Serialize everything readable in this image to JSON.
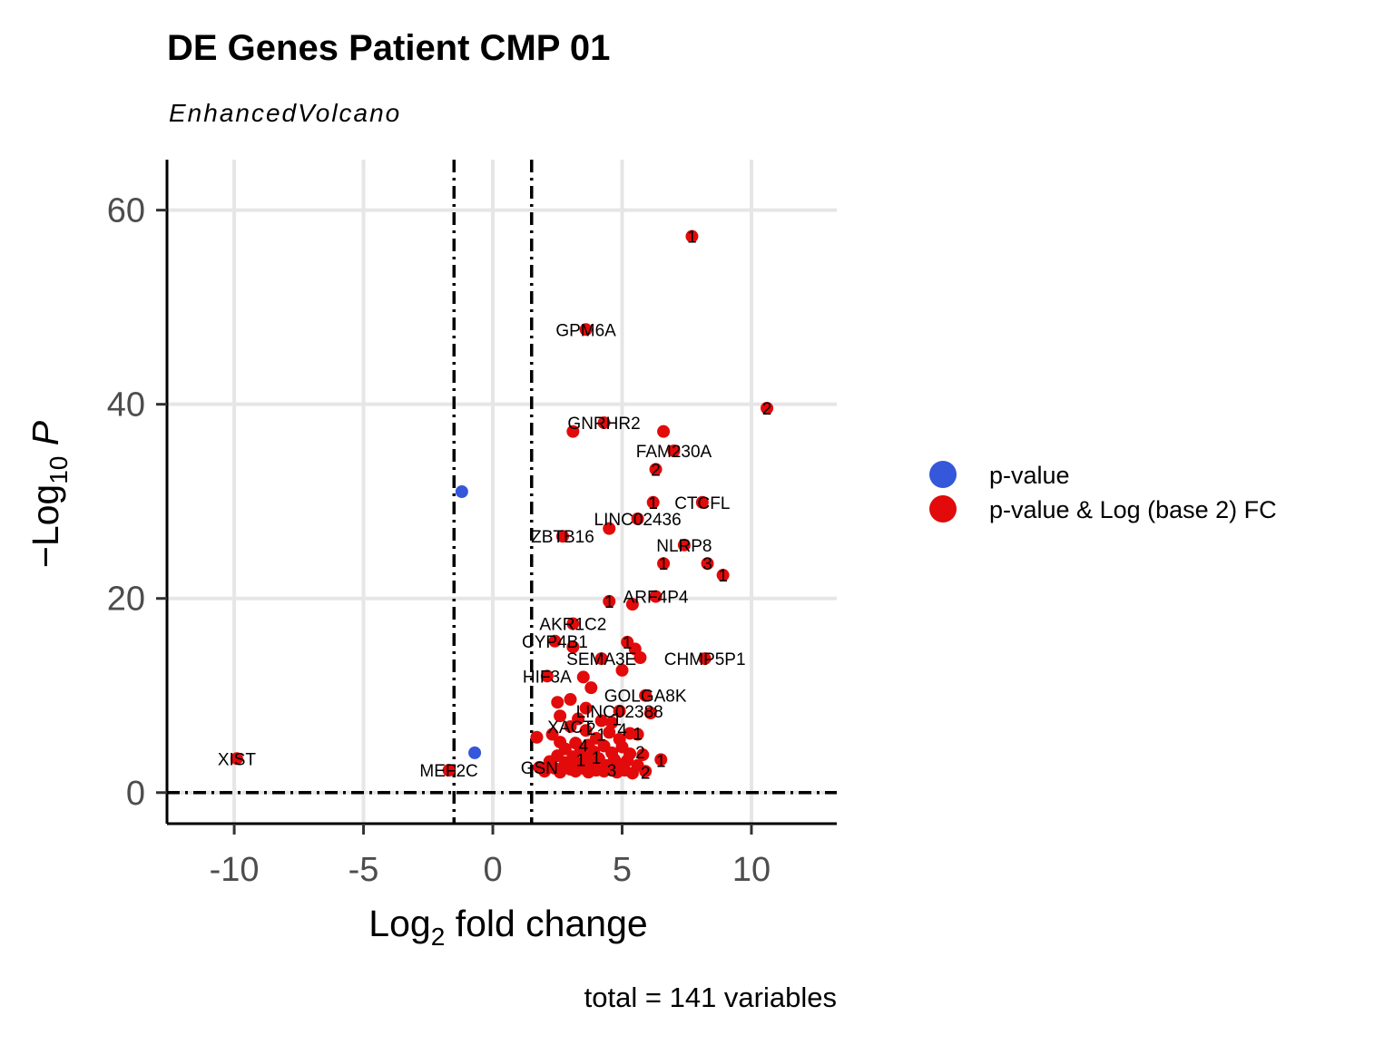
{
  "chart_data": {
    "type": "scatter",
    "title": "DE Genes Patient CMP 01",
    "subtitle": "EnhancedVolcano",
    "xlabel": "Log2 fold change",
    "ylabel": "-Log10 P",
    "caption": "total = 141 variables",
    "xlim": [
      -12.6,
      13.3
    ],
    "ylim": [
      -3.2,
      65.2
    ],
    "xticks": [
      -10,
      -5,
      0,
      5,
      10
    ],
    "xtick_labels": [
      "-10",
      "-5",
      "0",
      "5",
      "10"
    ],
    "yticks": [
      0,
      20,
      40,
      60
    ],
    "ytick_labels": [
      "0",
      "20",
      "40",
      "60"
    ],
    "grid": true,
    "legend_position": "right",
    "thresholds": {
      "log2fc": [
        -1.5,
        1.5
      ],
      "neg_log10_p": 0
    },
    "colors": {
      "pvalue": "#3557d9",
      "both": "#e20a0a",
      "grid": "#e6e6e6"
    },
    "series": [
      {
        "name": "p-value",
        "color": "#3557d9",
        "points": [
          {
            "x": -1.2,
            "y": 31.0
          },
          {
            "x": -0.7,
            "y": 4.1
          }
        ]
      },
      {
        "name": "p-value & Log (base 2) FC",
        "color": "#e20a0a",
        "points": [
          {
            "x": 7.7,
            "y": 57.3
          },
          {
            "x": 3.6,
            "y": 47.7,
            "label": "GPM6A"
          },
          {
            "x": 10.6,
            "y": 39.6
          },
          {
            "x": 4.3,
            "y": 38.1,
            "label": "GNRHR2"
          },
          {
            "x": 3.1,
            "y": 37.2
          },
          {
            "x": 6.6,
            "y": 37.2
          },
          {
            "x": 7.0,
            "y": 35.2,
            "label": "FAM230A"
          },
          {
            "x": 6.3,
            "y": 33.3
          },
          {
            "x": 6.2,
            "y": 29.9
          },
          {
            "x": 8.1,
            "y": 29.9,
            "label": "CTCFL"
          },
          {
            "x": 5.6,
            "y": 28.2,
            "label": "LINC02436"
          },
          {
            "x": 4.5,
            "y": 27.2
          },
          {
            "x": 2.7,
            "y": 26.4,
            "label": "ZBTB16"
          },
          {
            "x": 7.4,
            "y": 25.5,
            "label": "NLRP8"
          },
          {
            "x": 6.6,
            "y": 23.6
          },
          {
            "x": 8.3,
            "y": 23.6
          },
          {
            "x": 8.9,
            "y": 22.4
          },
          {
            "x": 4.5,
            "y": 19.7
          },
          {
            "x": 5.4,
            "y": 19.4
          },
          {
            "x": 6.3,
            "y": 20.2,
            "label": "ARF4P4"
          },
          {
            "x": 3.1,
            "y": 17.4,
            "label": "AKR1C2"
          },
          {
            "x": 2.4,
            "y": 15.6,
            "label": "CYP4B1"
          },
          {
            "x": 3.1,
            "y": 15.0
          },
          {
            "x": 5.2,
            "y": 15.5
          },
          {
            "x": 5.5,
            "y": 14.8
          },
          {
            "x": 4.2,
            "y": 13.8,
            "label": "SEMA3E"
          },
          {
            "x": 5.7,
            "y": 13.9
          },
          {
            "x": 8.2,
            "y": 13.8,
            "label": "CHMP5P1"
          },
          {
            "x": 5.0,
            "y": 12.6
          },
          {
            "x": 2.1,
            "y": 12.0,
            "label": "HIF3A"
          },
          {
            "x": 3.5,
            "y": 11.9
          },
          {
            "x": 3.8,
            "y": 10.8
          },
          {
            "x": 5.9,
            "y": 10.0,
            "label": "GOLGA8K"
          },
          {
            "x": 3.0,
            "y": 9.6
          },
          {
            "x": 2.5,
            "y": 9.3
          },
          {
            "x": 3.6,
            "y": 8.7
          },
          {
            "x": 4.9,
            "y": 8.4,
            "label": "LINC02388"
          },
          {
            "x": 6.1,
            "y": 8.2
          },
          {
            "x": 2.6,
            "y": 7.9
          },
          {
            "x": 3.3,
            "y": 7.6
          },
          {
            "x": 4.2,
            "y": 7.4
          },
          {
            "x": 4.6,
            "y": 7.2
          },
          {
            "x": 3.0,
            "y": 6.8,
            "label": "XACT"
          },
          {
            "x": 3.6,
            "y": 6.4
          },
          {
            "x": 4.5,
            "y": 6.2
          },
          {
            "x": 2.3,
            "y": 6.0
          },
          {
            "x": 5.3,
            "y": 6.1
          },
          {
            "x": 5.6,
            "y": 6.0
          },
          {
            "x": 1.7,
            "y": 5.7
          },
          {
            "x": 4.0,
            "y": 5.6
          },
          {
            "x": 4.9,
            "y": 5.5
          },
          {
            "x": 2.6,
            "y": 5.2
          },
          {
            "x": 3.2,
            "y": 5.1
          },
          {
            "x": 3.7,
            "y": 4.9
          },
          {
            "x": 4.3,
            "y": 4.8
          },
          {
            "x": 5.0,
            "y": 4.7
          },
          {
            "x": 2.8,
            "y": 4.5
          },
          {
            "x": 3.4,
            "y": 4.4
          },
          {
            "x": 3.9,
            "y": 4.2
          },
          {
            "x": 4.6,
            "y": 4.1
          },
          {
            "x": 5.3,
            "y": 4.0
          },
          {
            "x": 5.8,
            "y": 3.9
          },
          {
            "x": 2.5,
            "y": 3.8
          },
          {
            "x": 3.1,
            "y": 3.7
          },
          {
            "x": 3.6,
            "y": 3.6
          },
          {
            "x": 4.1,
            "y": 3.5
          },
          {
            "x": 4.7,
            "y": 3.4
          },
          {
            "x": 5.2,
            "y": 3.3
          },
          {
            "x": 6.5,
            "y": 3.4
          },
          {
            "x": 2.2,
            "y": 3.2
          },
          {
            "x": 2.8,
            "y": 3.1
          },
          {
            "x": 3.3,
            "y": 3.0
          },
          {
            "x": 3.9,
            "y": 2.9
          },
          {
            "x": 4.4,
            "y": 2.8
          },
          {
            "x": 5.0,
            "y": 2.9
          },
          {
            "x": 5.6,
            "y": 2.8
          },
          {
            "x": 1.8,
            "y": 2.6,
            "label": "GSN"
          },
          {
            "x": 2.4,
            "y": 2.5
          },
          {
            "x": 3.0,
            "y": 2.4
          },
          {
            "x": 3.5,
            "y": 2.5
          },
          {
            "x": 4.0,
            "y": 2.3
          },
          {
            "x": 4.6,
            "y": 2.4
          },
          {
            "x": 5.1,
            "y": 2.3
          },
          {
            "x": 2.0,
            "y": 2.2
          },
          {
            "x": 2.6,
            "y": 2.1
          },
          {
            "x": 3.2,
            "y": 2.2
          },
          {
            "x": 3.7,
            "y": 2.1
          },
          {
            "x": 4.3,
            "y": 2.2
          },
          {
            "x": 4.8,
            "y": 2.1
          },
          {
            "x": 5.4,
            "y": 2.0
          },
          {
            "x": 5.9,
            "y": 2.2
          },
          {
            "x": -9.9,
            "y": 3.5,
            "label": "XIST"
          },
          {
            "x": -1.7,
            "y": 2.3,
            "label": "MEF2C"
          }
        ]
      }
    ],
    "count_labels": [
      {
        "x": 7.7,
        "y": 57.3,
        "text": "1"
      },
      {
        "x": 10.6,
        "y": 39.6,
        "text": "2"
      },
      {
        "x": 6.3,
        "y": 33.3,
        "text": "2"
      },
      {
        "x": 6.2,
        "y": 29.9,
        "text": "1"
      },
      {
        "x": 6.6,
        "y": 23.6,
        "text": "1"
      },
      {
        "x": 8.3,
        "y": 23.6,
        "text": "3"
      },
      {
        "x": 8.9,
        "y": 22.4,
        "text": "1"
      },
      {
        "x": 4.5,
        "y": 19.7,
        "text": "1"
      },
      {
        "x": 5.2,
        "y": 15.5,
        "text": "1"
      },
      {
        "x": 4.8,
        "y": 7.6,
        "text": "1"
      },
      {
        "x": 3.8,
        "y": 6.6,
        "text": "2"
      },
      {
        "x": 5.0,
        "y": 6.5,
        "text": "4"
      },
      {
        "x": 5.6,
        "y": 6.1,
        "text": "1"
      },
      {
        "x": 4.2,
        "y": 6.0,
        "text": "1"
      },
      {
        "x": 3.5,
        "y": 4.9,
        "text": "4"
      },
      {
        "x": 5.7,
        "y": 4.2,
        "text": "2"
      },
      {
        "x": 3.4,
        "y": 3.4,
        "text": "1"
      },
      {
        "x": 4.0,
        "y": 3.6,
        "text": "1"
      },
      {
        "x": 6.5,
        "y": 3.3,
        "text": "1"
      },
      {
        "x": 4.6,
        "y": 2.3,
        "text": "3"
      },
      {
        "x": 5.9,
        "y": 2.1,
        "text": "2"
      }
    ]
  }
}
